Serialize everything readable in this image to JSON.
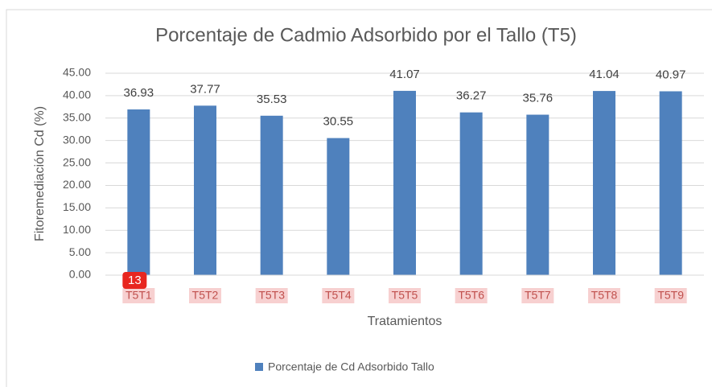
{
  "chart_data": {
    "type": "bar",
    "title": "Porcentaje de Cadmio Adsorbido por el Tallo (T5)",
    "x_label": "Tratamientos",
    "y_label": "Fitoremediación Cd (%)",
    "categories": [
      "T5T1",
      "T5T2",
      "T5T3",
      "T5T4",
      "T5T5",
      "T5T6",
      "T5T7",
      "T5T8",
      "T5T9"
    ],
    "series": [
      {
        "name": "Porcentaje de Cd Adsorbido Tallo",
        "color": "#4f81bd",
        "values": [
          36.93,
          37.77,
          35.53,
          30.55,
          41.07,
          36.27,
          35.76,
          41.04,
          40.97
        ]
      }
    ],
    "ylim": [
      0,
      45
    ],
    "yticks": [
      {
        "value": 0,
        "label": "0.00"
      },
      {
        "value": 5,
        "label": "5.00"
      },
      {
        "value": 10,
        "label": "10.00"
      },
      {
        "value": 15,
        "label": "15.00"
      },
      {
        "value": 20,
        "label": "20.00"
      },
      {
        "value": 25,
        "label": "25.00"
      },
      {
        "value": 30,
        "label": "30.00"
      },
      {
        "value": 35,
        "label": "35.00"
      },
      {
        "value": 40,
        "label": "40.00"
      },
      {
        "value": 45,
        "label": "45.00"
      }
    ],
    "legend": "bottom",
    "badge": "13"
  }
}
